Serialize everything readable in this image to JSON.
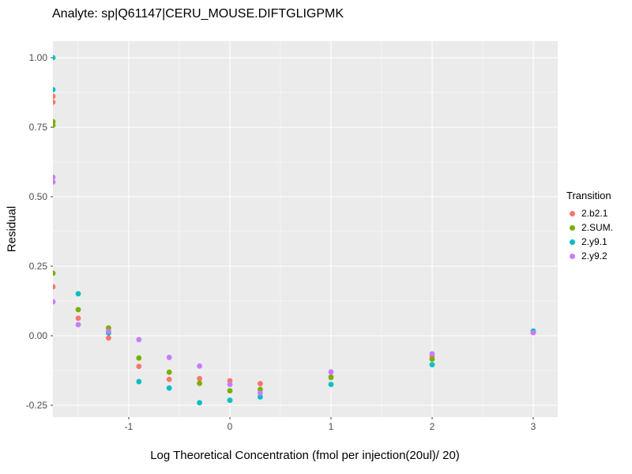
{
  "title": "Analyte: sp|Q61147|CERU_MOUSE.DIFTGLIGPMK",
  "chart_data": {
    "type": "scatter",
    "title": "Analyte: sp|Q61147|CERU_MOUSE.DIFTGLIGPMK",
    "xlabel": "Log Theoretical Concentration (fmol per injection(20ul)/ 20)",
    "ylabel": "Residual",
    "xlim": [
      -1.75,
      3.2422
    ],
    "ylim": [
      -0.2926,
      1.0597
    ],
    "x_ticks_major": [
      -1,
      0,
      1,
      2,
      3
    ],
    "x_tick_labels": [
      "-1",
      "0",
      "1",
      "2",
      "3"
    ],
    "x_ticks_minor": [
      -1.5,
      -0.5,
      0.5,
      1.5,
      2.5
    ],
    "y_ticks_major": [
      1.0,
      0.75,
      0.5,
      0.25,
      0.0,
      -0.25
    ],
    "y_tick_labels": [
      "1.00",
      "0.75",
      "0.50",
      "0.25",
      "0.00",
      "-0.25"
    ],
    "y_ticks_minor": [
      0.875,
      0.625,
      0.375,
      0.125,
      -0.125
    ],
    "grid": true,
    "legend_position": "right",
    "legend_title": "Transition",
    "colors": {
      "panel_bg": "#EBEBEB",
      "grid": "#FFFFFF",
      "tick": "#333333",
      "tick_label": "#4D4D4D",
      "text": "#000000"
    },
    "series": [
      {
        "name": "2.b2.1",
        "color": "#F8766D",
        "points": [
          [
            -1.75,
            0.861
          ],
          [
            -1.75,
            0.84
          ],
          [
            -1.75,
            0.176
          ],
          [
            -1.5,
            0.063
          ],
          [
            -1.2,
            -0.008
          ],
          [
            -0.9,
            -0.11
          ],
          [
            -0.6,
            -0.157
          ],
          [
            -0.3,
            -0.154
          ],
          [
            0,
            -0.162
          ],
          [
            0.3,
            -0.172
          ],
          [
            1,
            -0.148
          ],
          [
            2,
            -0.074
          ],
          [
            3,
            0.011
          ]
        ]
      },
      {
        "name": "2.SUM.",
        "color": "#7CAE00",
        "points": [
          [
            -1.75,
            0.77
          ],
          [
            -1.75,
            0.757
          ],
          [
            -1.75,
            0.225
          ],
          [
            -1.5,
            0.094
          ],
          [
            -1.2,
            0.028
          ],
          [
            -0.9,
            -0.08
          ],
          [
            -0.6,
            -0.131
          ],
          [
            -0.3,
            -0.171
          ],
          [
            0,
            -0.198
          ],
          [
            0.3,
            -0.193
          ],
          [
            1,
            -0.15
          ],
          [
            2,
            -0.084
          ],
          [
            3,
            0.012
          ]
        ]
      },
      {
        "name": "2.y9.1",
        "color": "#00BFC4",
        "points": [
          [
            -1.75,
            1.0
          ],
          [
            -1.75,
            0.885
          ],
          [
            -1.5,
            0.151
          ],
          [
            -1.2,
            0.01
          ],
          [
            -0.9,
            -0.165
          ],
          [
            -0.6,
            -0.188
          ],
          [
            -0.3,
            -0.241
          ],
          [
            0,
            -0.232
          ],
          [
            0.3,
            -0.22
          ],
          [
            1,
            -0.175
          ],
          [
            2,
            -0.104
          ],
          [
            3,
            0.017
          ]
        ]
      },
      {
        "name": "2.y9.2",
        "color": "#C77CFF",
        "points": [
          [
            -1.75,
            0.57
          ],
          [
            -1.75,
            0.553
          ],
          [
            -1.75,
            0.122
          ],
          [
            -1.5,
            0.04
          ],
          [
            -1.2,
            0.016
          ],
          [
            -0.9,
            -0.014
          ],
          [
            -0.6,
            -0.078
          ],
          [
            -0.3,
            -0.109
          ],
          [
            0,
            -0.175
          ],
          [
            0.3,
            -0.206
          ],
          [
            1,
            -0.13
          ],
          [
            2,
            -0.065
          ],
          [
            3,
            0.011
          ]
        ]
      }
    ]
  }
}
